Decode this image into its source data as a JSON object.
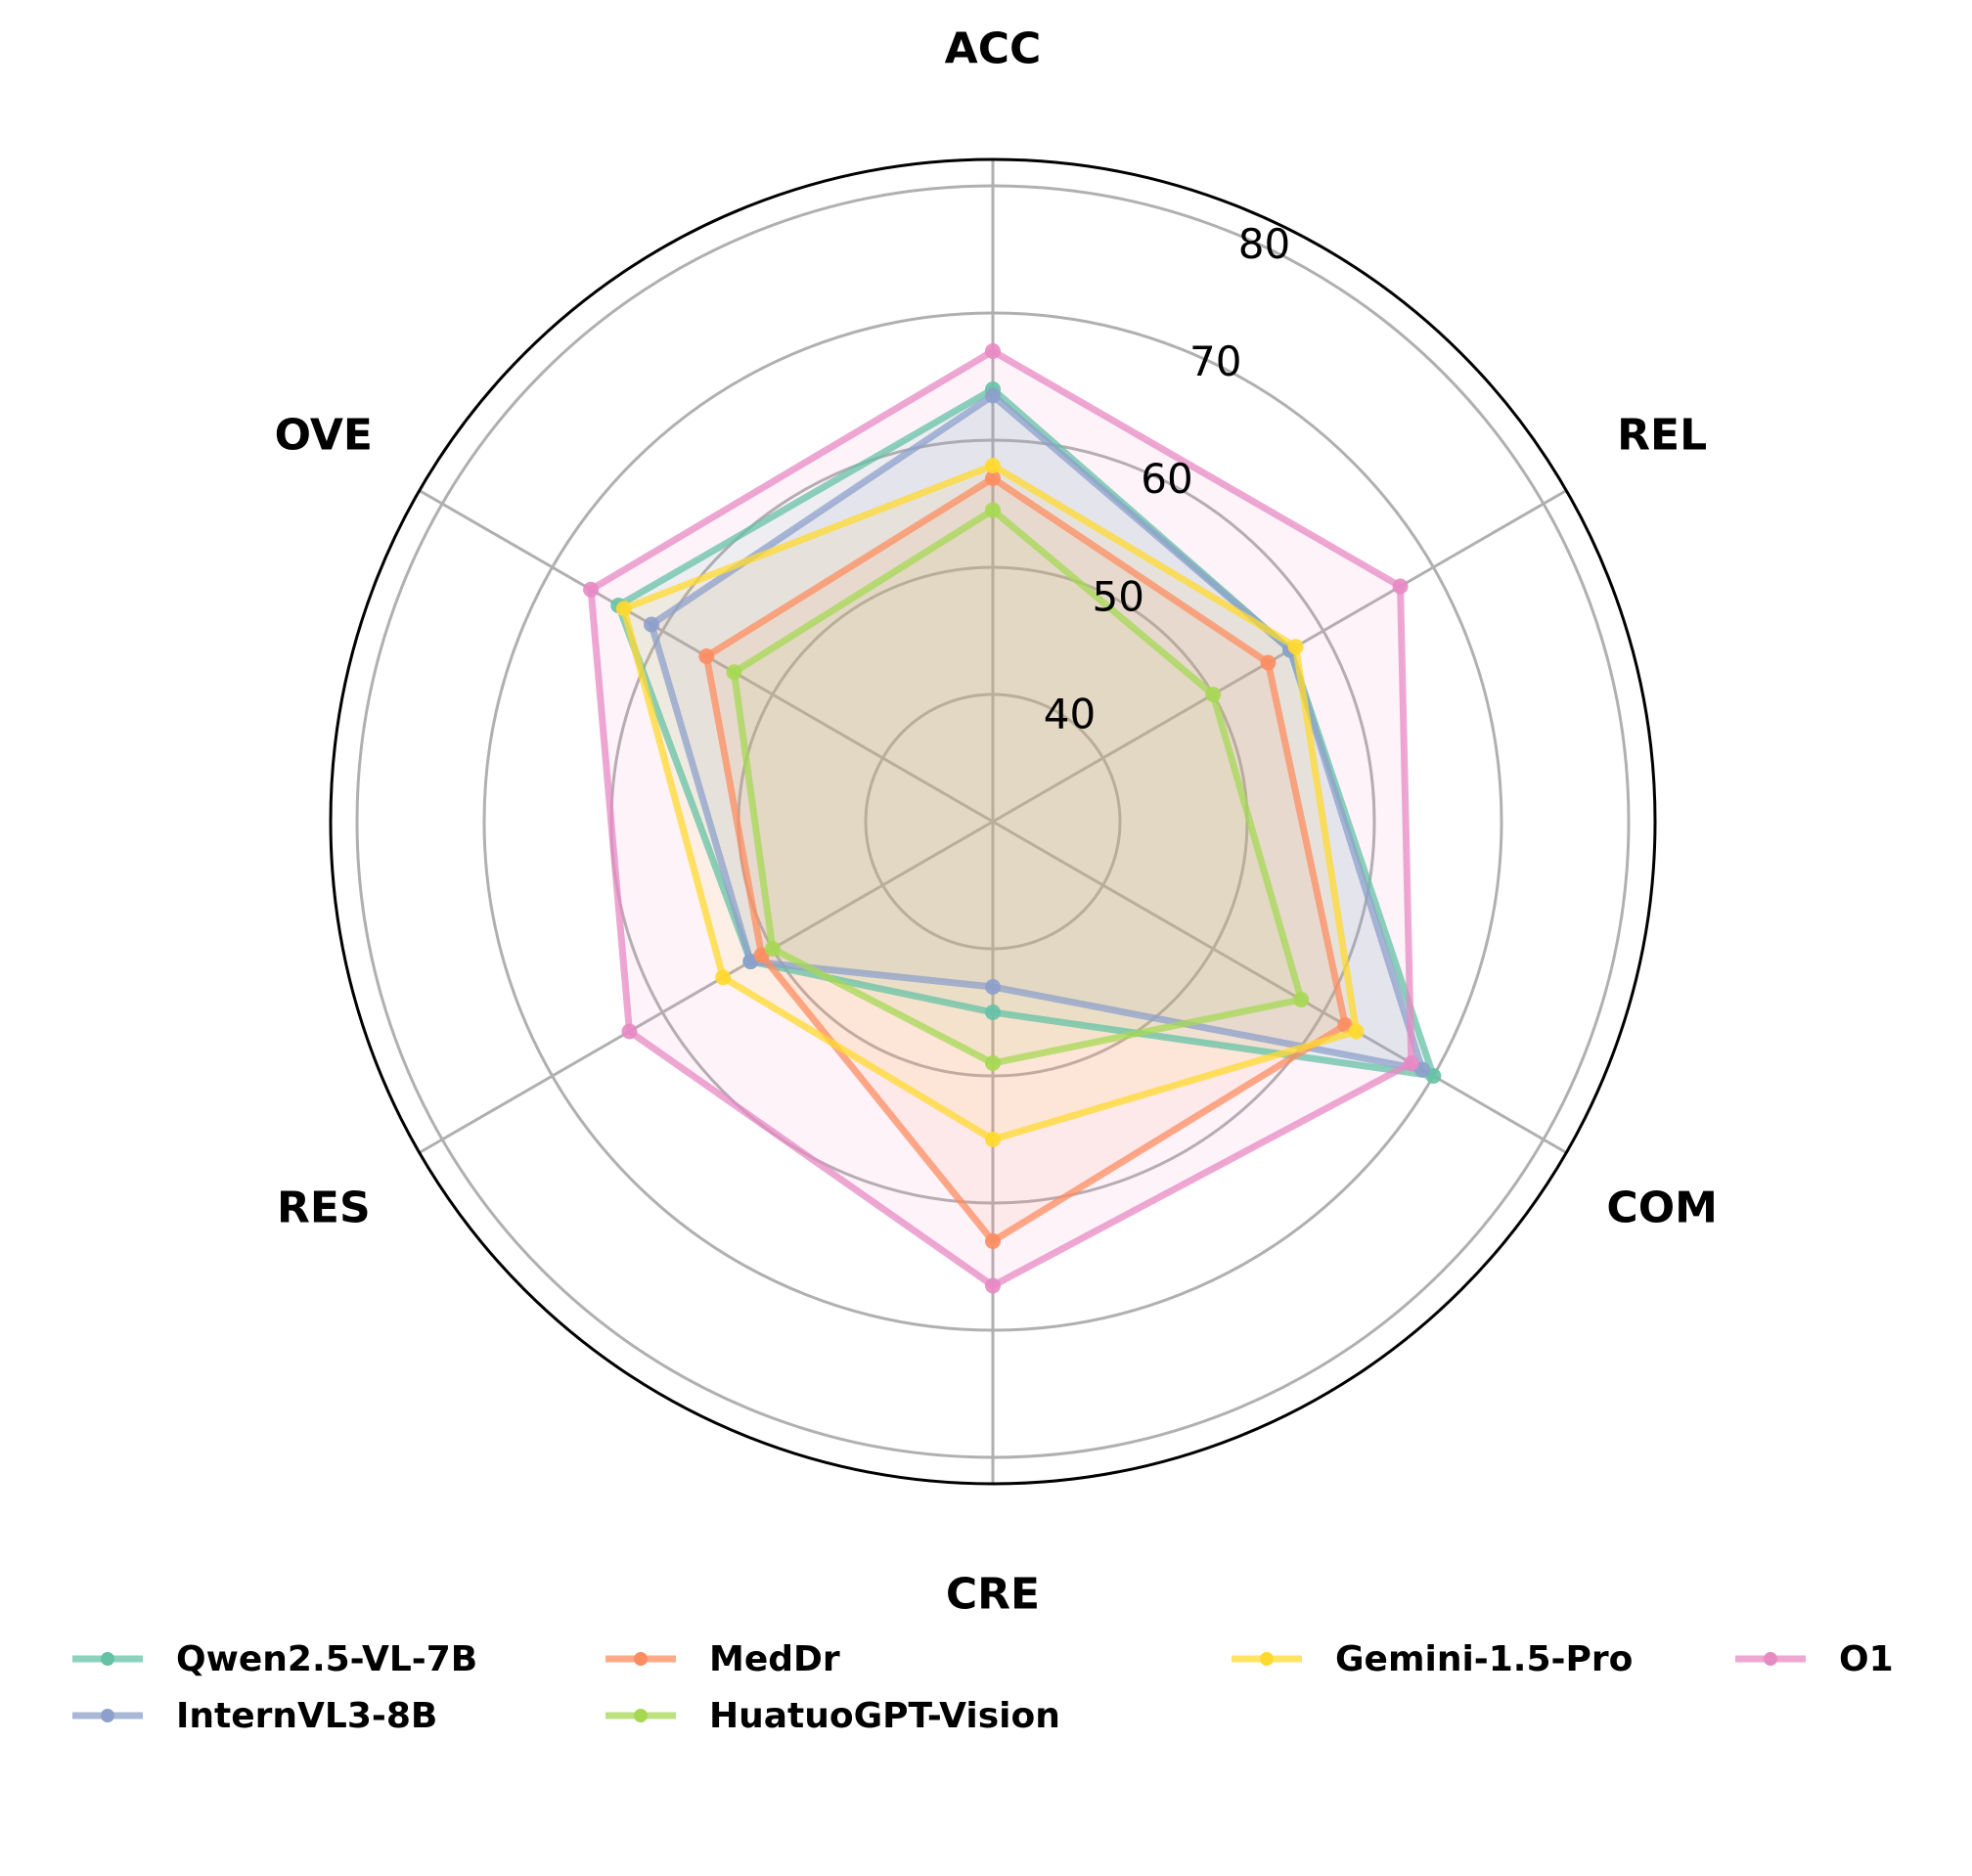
{
  "chart_data": {
    "type": "radar",
    "axes": [
      "ACC",
      "REL",
      "COM",
      "CRE",
      "RES",
      "OVE"
    ],
    "radial_ticks": [
      40,
      50,
      60,
      70,
      80
    ],
    "radial_range": [
      30,
      82
    ],
    "grid": true,
    "legend_position": "bottom",
    "series": [
      {
        "name": "Qwen2.5-VL-7B",
        "color": "#66c2a5",
        "values": [
          64.0,
          57.0,
          70.0,
          45.0,
          52.0,
          64.0
        ]
      },
      {
        "name": "InternVL3-8B",
        "color": "#8da0cb",
        "values": [
          63.5,
          57.0,
          69.0,
          43.0,
          52.0,
          61.0
        ]
      },
      {
        "name": "MedDr",
        "color": "#fc8d62",
        "values": [
          57.0,
          55.0,
          62.0,
          63.0,
          51.0,
          56.0
        ]
      },
      {
        "name": "HuatuoGPT-Vision",
        "color": "#a6d854",
        "values": [
          54.5,
          50.0,
          58.0,
          49.0,
          50.0,
          53.5
        ]
      },
      {
        "name": "Gemini-1.5-Pro",
        "color": "#ffd92f",
        "values": [
          58.0,
          57.5,
          63.0,
          55.0,
          54.5,
          63.5
        ]
      },
      {
        "name": "O1",
        "color": "#e78ac3",
        "values": [
          67.0,
          67.0,
          68.0,
          66.5,
          63.0,
          66.5
        ]
      }
    ]
  }
}
